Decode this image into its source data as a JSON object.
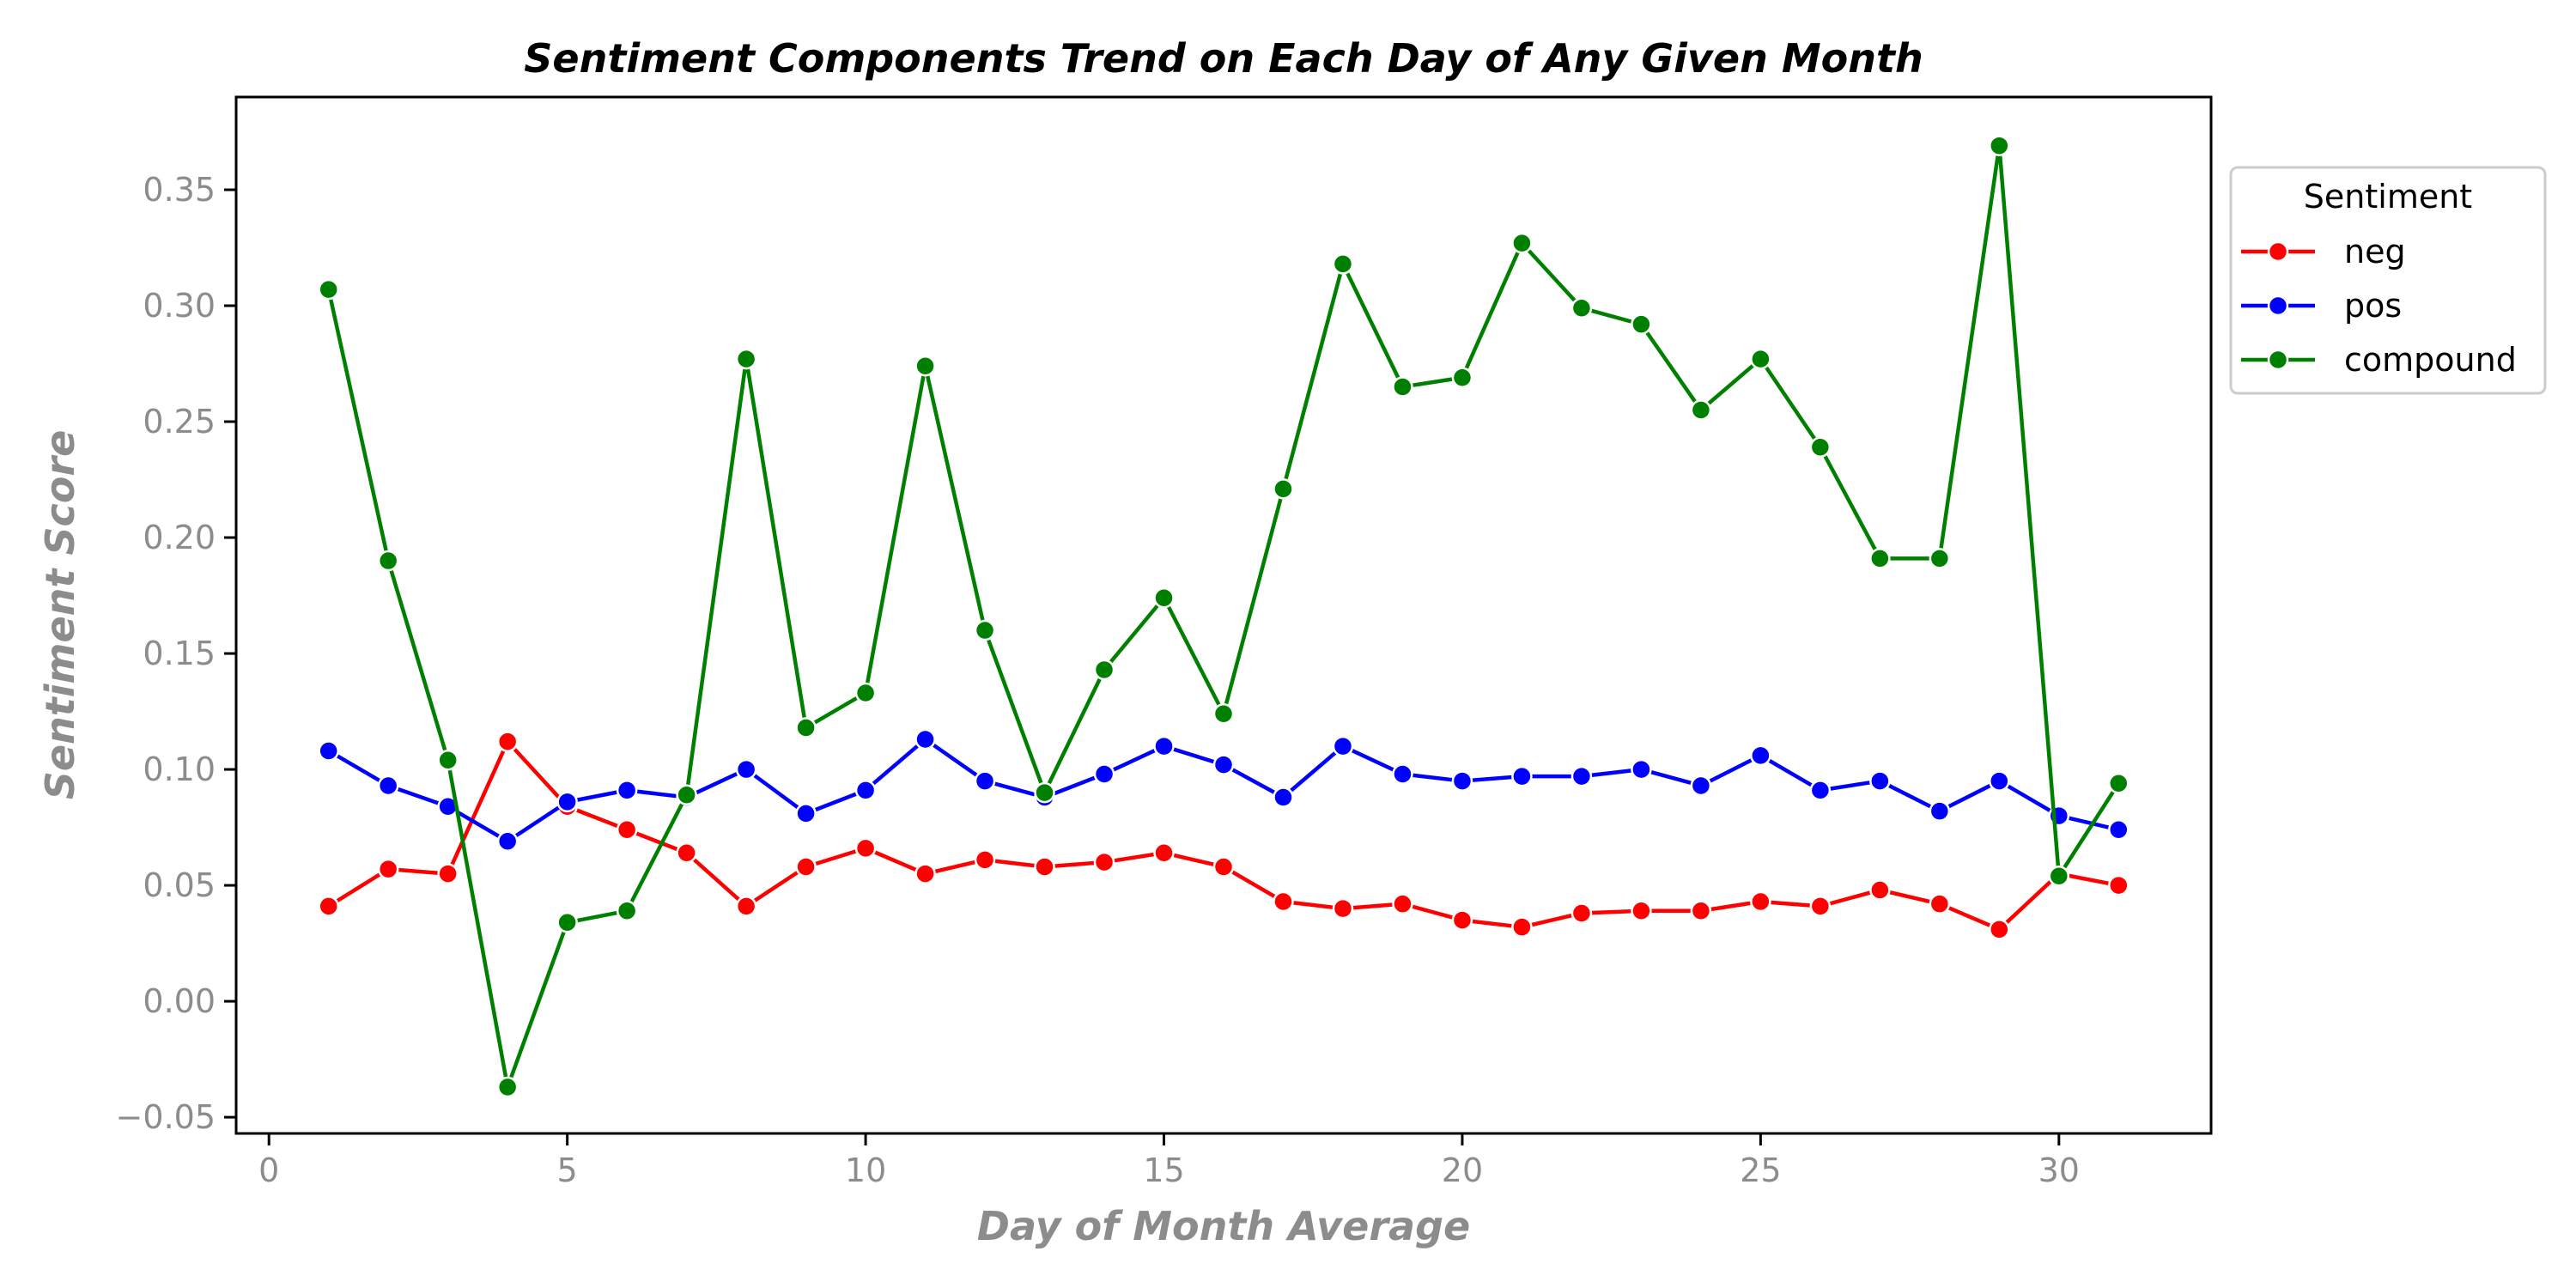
{
  "chart_data": {
    "type": "line",
    "title": "Sentiment Components Trend on Each Day of Any Given Month",
    "xlabel": "Day of Month Average",
    "ylabel": "Sentiment Score",
    "xlim": [
      -0.55,
      32.55
    ],
    "ylim": [
      -0.057,
      0.39
    ],
    "x_ticks": [
      0,
      5,
      10,
      15,
      20,
      25,
      30
    ],
    "x_tick_labels": [
      "0",
      "5",
      "10",
      "15",
      "20",
      "25",
      "30"
    ],
    "y_ticks": [
      -0.05,
      0.0,
      0.05,
      0.1,
      0.15,
      0.2,
      0.25,
      0.3,
      0.35
    ],
    "y_tick_labels": [
      "−0.05",
      "0.00",
      "0.05",
      "0.10",
      "0.15",
      "0.20",
      "0.25",
      "0.30",
      "0.35"
    ],
    "grid": false,
    "legend": {
      "title": "Sentiment",
      "placement": "outside-right-top"
    },
    "x": [
      1,
      2,
      3,
      4,
      5,
      6,
      7,
      8,
      9,
      10,
      11,
      12,
      13,
      14,
      15,
      16,
      17,
      18,
      19,
      20,
      21,
      22,
      23,
      24,
      25,
      26,
      27,
      28,
      29,
      30,
      31
    ],
    "series": [
      {
        "name": "neg",
        "color": "#ff0000",
        "values": [
          0.041,
          0.057,
          0.055,
          0.112,
          0.084,
          0.074,
          0.064,
          0.041,
          0.058,
          0.066,
          0.055,
          0.061,
          0.058,
          0.06,
          0.064,
          0.058,
          0.043,
          0.04,
          0.042,
          0.035,
          0.032,
          0.038,
          0.039,
          0.039,
          0.043,
          0.041,
          0.048,
          0.042,
          0.031,
          0.055,
          0.05
        ]
      },
      {
        "name": "pos",
        "color": "#0000ff",
        "values": [
          0.108,
          0.093,
          0.084,
          0.069,
          0.086,
          0.091,
          0.088,
          0.1,
          0.081,
          0.091,
          0.113,
          0.095,
          0.088,
          0.098,
          0.11,
          0.102,
          0.088,
          0.11,
          0.098,
          0.095,
          0.097,
          0.097,
          0.1,
          0.093,
          0.106,
          0.091,
          0.095,
          0.082,
          0.095,
          0.08,
          0.074
        ]
      },
      {
        "name": "compound",
        "color": "#008000",
        "values": [
          0.307,
          0.19,
          0.104,
          -0.037,
          0.034,
          0.039,
          0.089,
          0.277,
          0.118,
          0.133,
          0.274,
          0.16,
          0.09,
          0.143,
          0.174,
          0.124,
          0.221,
          0.318,
          0.265,
          0.269,
          0.327,
          0.299,
          0.292,
          0.255,
          0.277,
          0.239,
          0.191,
          0.191,
          0.369,
          0.054,
          0.094
        ]
      }
    ]
  }
}
